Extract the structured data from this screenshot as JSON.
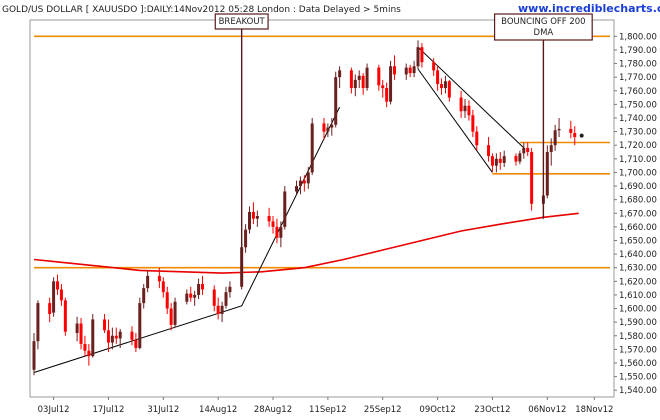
{
  "header": {
    "title": "GOLD/US DOLLAR [ XAUUSDO ]:DAILY:14Nov2012 05:28 London : Data Delayed > 5mins",
    "website": "www.incrediblecharts.com"
  },
  "colors": {
    "up": "#6b2020",
    "down": "#ff0000",
    "ma": "#e80000",
    "support": "#f08a00",
    "trend": "#000000",
    "annotation_border": "#5a1a1a"
  },
  "annotations": [
    {
      "name": "breakout",
      "lines": [
        "BREAKOUT"
      ],
      "x": "2012-08-20",
      "y_top": 1812,
      "y_bottom": 1620
    },
    {
      "name": "bouncing",
      "lines": [
        "BOUNCING OFF 200",
        "DMA"
      ],
      "x": "2012-11-05",
      "y_top": 1812,
      "y_bottom": 1666
    }
  ],
  "chart_data": {
    "type": "candlestick",
    "title": "GOLD/US DOLLAR [ XAUUSDO ]:DAILY:14Nov2012 05:28 London : Data Delayed > 5mins",
    "xlabel": "",
    "ylabel": "",
    "xlim": [
      "2012-06-28",
      "2012-11-22"
    ],
    "ylim": [
      1535,
      1812
    ],
    "y_axis_side": "right",
    "grid": false,
    "x_ticks": [
      {
        "date": "2012-07-03",
        "label": "03Jul12"
      },
      {
        "date": "2012-07-17",
        "label": "17Jul12"
      },
      {
        "date": "2012-07-31",
        "label": "31Jul12"
      },
      {
        "date": "2012-08-14",
        "label": "14Aug12"
      },
      {
        "date": "2012-08-28",
        "label": "28Aug12"
      },
      {
        "date": "2012-09-11",
        "label": "11Sep12"
      },
      {
        "date": "2012-09-25",
        "label": "25Sep12"
      },
      {
        "date": "2012-10-09",
        "label": "09Oct12"
      },
      {
        "date": "2012-10-23",
        "label": "23Oct12"
      },
      {
        "date": "2012-11-06",
        "label": "06Nov12"
      },
      {
        "date": "2012-11-18",
        "label": "18Nov12"
      }
    ],
    "y_ticks": [
      1540,
      1550,
      1560,
      1570,
      1580,
      1590,
      1600,
      1610,
      1620,
      1630,
      1640,
      1650,
      1660,
      1670,
      1680,
      1690,
      1700,
      1710,
      1720,
      1730,
      1740,
      1750,
      1760,
      1770,
      1780,
      1790,
      1800
    ],
    "y_tick_labels": [
      "1,540.00",
      "1,550.00",
      "1,560.00",
      "1,570.00",
      "1,580.00",
      "1,590.00",
      "1,600.00",
      "1,610.00",
      "1,620.00",
      "1,630.00",
      "1,640.00",
      "1,650.00",
      "1,660.00",
      "1,670.00",
      "1,680.00",
      "1,690.00",
      "1,700.00",
      "1,710.00",
      "1,720.00",
      "1,730.00",
      "1,740.00",
      "1,750.00",
      "1,760.00",
      "1,770.00",
      "1,780.00",
      "1,790.00",
      "1,800.00"
    ],
    "candles": [
      {
        "date": "2012-06-28",
        "o": 1555,
        "h": 1582,
        "l": 1551,
        "c": 1576
      },
      {
        "date": "2012-06-29",
        "o": 1576,
        "h": 1606,
        "l": 1570,
        "c": 1604
      },
      {
        "date": "2012-07-02",
        "o": 1604,
        "h": 1608,
        "l": 1590,
        "c": 1596
      },
      {
        "date": "2012-07-03",
        "o": 1597,
        "h": 1623,
        "l": 1594,
        "c": 1620
      },
      {
        "date": "2012-07-04",
        "o": 1620,
        "h": 1625,
        "l": 1610,
        "c": 1614
      },
      {
        "date": "2012-07-05",
        "o": 1614,
        "h": 1618,
        "l": 1602,
        "c": 1606
      },
      {
        "date": "2012-07-06",
        "o": 1606,
        "h": 1608,
        "l": 1580,
        "c": 1583
      },
      {
        "date": "2012-07-09",
        "o": 1582,
        "h": 1594,
        "l": 1576,
        "c": 1589
      },
      {
        "date": "2012-07-10",
        "o": 1589,
        "h": 1593,
        "l": 1570,
        "c": 1574
      },
      {
        "date": "2012-07-11",
        "o": 1574,
        "h": 1580,
        "l": 1565,
        "c": 1569
      },
      {
        "date": "2012-07-12",
        "o": 1569,
        "h": 1574,
        "l": 1558,
        "c": 1565
      },
      {
        "date": "2012-07-13",
        "o": 1565,
        "h": 1596,
        "l": 1564,
        "c": 1592
      },
      {
        "date": "2012-07-16",
        "o": 1592,
        "h": 1596,
        "l": 1582,
        "c": 1584
      },
      {
        "date": "2012-07-17",
        "o": 1584,
        "h": 1592,
        "l": 1568,
        "c": 1575
      },
      {
        "date": "2012-07-18",
        "o": 1575,
        "h": 1586,
        "l": 1570,
        "c": 1580
      },
      {
        "date": "2012-07-19",
        "o": 1580,
        "h": 1586,
        "l": 1574,
        "c": 1578
      },
      {
        "date": "2012-07-20",
        "o": 1578,
        "h": 1585,
        "l": 1571,
        "c": 1583
      },
      {
        "date": "2012-07-23",
        "o": 1583,
        "h": 1587,
        "l": 1573,
        "c": 1577
      },
      {
        "date": "2012-07-24",
        "o": 1577,
        "h": 1582,
        "l": 1568,
        "c": 1571
      },
      {
        "date": "2012-07-25",
        "o": 1571,
        "h": 1608,
        "l": 1570,
        "c": 1604
      },
      {
        "date": "2012-07-26",
        "o": 1604,
        "h": 1618,
        "l": 1600,
        "c": 1615
      },
      {
        "date": "2012-07-27",
        "o": 1615,
        "h": 1628,
        "l": 1612,
        "c": 1624
      },
      {
        "date": "2012-07-30",
        "o": 1624,
        "h": 1630,
        "l": 1615,
        "c": 1620
      },
      {
        "date": "2012-07-31",
        "o": 1620,
        "h": 1623,
        "l": 1608,
        "c": 1612
      },
      {
        "date": "2012-08-01",
        "o": 1612,
        "h": 1616,
        "l": 1596,
        "c": 1600
      },
      {
        "date": "2012-08-02",
        "o": 1600,
        "h": 1604,
        "l": 1584,
        "c": 1588
      },
      {
        "date": "2012-08-03",
        "o": 1588,
        "h": 1608,
        "l": 1586,
        "c": 1605
      },
      {
        "date": "2012-08-06",
        "o": 1605,
        "h": 1614,
        "l": 1603,
        "c": 1611
      },
      {
        "date": "2012-08-07",
        "o": 1611,
        "h": 1616,
        "l": 1605,
        "c": 1608
      },
      {
        "date": "2012-08-08",
        "o": 1608,
        "h": 1613,
        "l": 1602,
        "c": 1610
      },
      {
        "date": "2012-08-09",
        "o": 1610,
        "h": 1622,
        "l": 1607,
        "c": 1618
      },
      {
        "date": "2012-08-10",
        "o": 1618,
        "h": 1624,
        "l": 1610,
        "c": 1614
      },
      {
        "date": "2012-08-13",
        "o": 1614,
        "h": 1617,
        "l": 1598,
        "c": 1602
      },
      {
        "date": "2012-08-14",
        "o": 1602,
        "h": 1608,
        "l": 1592,
        "c": 1596
      },
      {
        "date": "2012-08-15",
        "o": 1596,
        "h": 1605,
        "l": 1590,
        "c": 1602
      },
      {
        "date": "2012-08-16",
        "o": 1602,
        "h": 1616,
        "l": 1600,
        "c": 1612
      },
      {
        "date": "2012-08-17",
        "o": 1612,
        "h": 1620,
        "l": 1608,
        "c": 1616
      },
      {
        "date": "2012-08-20",
        "o": 1616,
        "h": 1648,
        "l": 1614,
        "c": 1645
      },
      {
        "date": "2012-08-21",
        "o": 1645,
        "h": 1662,
        "l": 1641,
        "c": 1658
      },
      {
        "date": "2012-08-22",
        "o": 1658,
        "h": 1675,
        "l": 1655,
        "c": 1671
      },
      {
        "date": "2012-08-23",
        "o": 1671,
        "h": 1678,
        "l": 1662,
        "c": 1666
      },
      {
        "date": "2012-08-24",
        "o": 1666,
        "h": 1672,
        "l": 1660,
        "c": 1668
      },
      {
        "date": "2012-08-27",
        "o": 1668,
        "h": 1674,
        "l": 1660,
        "c": 1664
      },
      {
        "date": "2012-08-28",
        "o": 1664,
        "h": 1668,
        "l": 1655,
        "c": 1660
      },
      {
        "date": "2012-08-29",
        "o": 1660,
        "h": 1666,
        "l": 1648,
        "c": 1652
      },
      {
        "date": "2012-08-30",
        "o": 1652,
        "h": 1664,
        "l": 1645,
        "c": 1660
      },
      {
        "date": "2012-08-31",
        "o": 1660,
        "h": 1690,
        "l": 1658,
        "c": 1686
      },
      {
        "date": "2012-09-03",
        "o": 1686,
        "h": 1694,
        "l": 1684,
        "c": 1690
      },
      {
        "date": "2012-09-04",
        "o": 1690,
        "h": 1697,
        "l": 1684,
        "c": 1694
      },
      {
        "date": "2012-09-05",
        "o": 1694,
        "h": 1698,
        "l": 1686,
        "c": 1692
      },
      {
        "date": "2012-09-06",
        "o": 1692,
        "h": 1704,
        "l": 1688,
        "c": 1700
      },
      {
        "date": "2012-09-07",
        "o": 1700,
        "h": 1740,
        "l": 1698,
        "c": 1736
      },
      {
        "date": "2012-09-10",
        "o": 1736,
        "h": 1740,
        "l": 1724,
        "c": 1730
      },
      {
        "date": "2012-09-11",
        "o": 1730,
        "h": 1736,
        "l": 1726,
        "c": 1733
      },
      {
        "date": "2012-09-12",
        "o": 1733,
        "h": 1740,
        "l": 1727,
        "c": 1735
      },
      {
        "date": "2012-09-13",
        "o": 1735,
        "h": 1774,
        "l": 1733,
        "c": 1770
      },
      {
        "date": "2012-09-14",
        "o": 1770,
        "h": 1778,
        "l": 1762,
        "c": 1775
      },
      {
        "date": "2012-09-17",
        "o": 1775,
        "h": 1777,
        "l": 1758,
        "c": 1762
      },
      {
        "date": "2012-09-18",
        "o": 1762,
        "h": 1772,
        "l": 1756,
        "c": 1768
      },
      {
        "date": "2012-09-19",
        "o": 1768,
        "h": 1775,
        "l": 1762,
        "c": 1771
      },
      {
        "date": "2012-09-20",
        "o": 1771,
        "h": 1773,
        "l": 1757,
        "c": 1762
      },
      {
        "date": "2012-09-21",
        "o": 1762,
        "h": 1780,
        "l": 1760,
        "c": 1777
      },
      {
        "date": "2012-09-24",
        "o": 1777,
        "h": 1779,
        "l": 1760,
        "c": 1764
      },
      {
        "date": "2012-09-25",
        "o": 1764,
        "h": 1768,
        "l": 1755,
        "c": 1762
      },
      {
        "date": "2012-09-26",
        "o": 1762,
        "h": 1766,
        "l": 1748,
        "c": 1752
      },
      {
        "date": "2012-09-27",
        "o": 1752,
        "h": 1782,
        "l": 1750,
        "c": 1778
      },
      {
        "date": "2012-09-28",
        "o": 1778,
        "h": 1786,
        "l": 1768,
        "c": 1772
      },
      {
        "date": "2012-10-01",
        "o": 1772,
        "h": 1780,
        "l": 1768,
        "c": 1777
      },
      {
        "date": "2012-10-02",
        "o": 1777,
        "h": 1779,
        "l": 1770,
        "c": 1773
      },
      {
        "date": "2012-10-03",
        "o": 1773,
        "h": 1782,
        "l": 1770,
        "c": 1778
      },
      {
        "date": "2012-10-04",
        "o": 1778,
        "h": 1797,
        "l": 1776,
        "c": 1792
      },
      {
        "date": "2012-10-05",
        "o": 1792,
        "h": 1795,
        "l": 1777,
        "c": 1781
      },
      {
        "date": "2012-10-08",
        "o": 1781,
        "h": 1784,
        "l": 1771,
        "c": 1775
      },
      {
        "date": "2012-10-09",
        "o": 1775,
        "h": 1778,
        "l": 1760,
        "c": 1765
      },
      {
        "date": "2012-10-10",
        "o": 1765,
        "h": 1769,
        "l": 1757,
        "c": 1762
      },
      {
        "date": "2012-10-11",
        "o": 1762,
        "h": 1771,
        "l": 1758,
        "c": 1767
      },
      {
        "date": "2012-10-12",
        "o": 1767,
        "h": 1768,
        "l": 1752,
        "c": 1755
      },
      {
        "date": "2012-10-15",
        "o": 1755,
        "h": 1760,
        "l": 1740,
        "c": 1745
      },
      {
        "date": "2012-10-16",
        "o": 1745,
        "h": 1754,
        "l": 1740,
        "c": 1749
      },
      {
        "date": "2012-10-17",
        "o": 1749,
        "h": 1753,
        "l": 1738,
        "c": 1742
      },
      {
        "date": "2012-10-18",
        "o": 1742,
        "h": 1746,
        "l": 1726,
        "c": 1730
      },
      {
        "date": "2012-10-19",
        "o": 1730,
        "h": 1734,
        "l": 1716,
        "c": 1720
      },
      {
        "date": "2012-10-22",
        "o": 1720,
        "h": 1726,
        "l": 1708,
        "c": 1712
      },
      {
        "date": "2012-10-23",
        "o": 1712,
        "h": 1714,
        "l": 1700,
        "c": 1705
      },
      {
        "date": "2012-10-24",
        "o": 1705,
        "h": 1714,
        "l": 1700,
        "c": 1710
      },
      {
        "date": "2012-10-25",
        "o": 1710,
        "h": 1715,
        "l": 1702,
        "c": 1707
      },
      {
        "date": "2012-10-26",
        "o": 1707,
        "h": 1716,
        "l": 1704,
        "c": 1712
      },
      {
        "date": "2012-10-29",
        "o": 1712,
        "h": 1714,
        "l": 1705,
        "c": 1708
      },
      {
        "date": "2012-10-30",
        "o": 1708,
        "h": 1716,
        "l": 1706,
        "c": 1714
      },
      {
        "date": "2012-10-31",
        "o": 1714,
        "h": 1722,
        "l": 1710,
        "c": 1718
      },
      {
        "date": "2012-11-01",
        "o": 1718,
        "h": 1722,
        "l": 1712,
        "c": 1715
      },
      {
        "date": "2012-11-02",
        "o": 1715,
        "h": 1718,
        "l": 1672,
        "c": 1677
      },
      {
        "date": "2012-11-05",
        "o": 1677,
        "h": 1686,
        "l": 1670,
        "c": 1683
      },
      {
        "date": "2012-11-06",
        "o": 1683,
        "h": 1720,
        "l": 1681,
        "c": 1715
      },
      {
        "date": "2012-11-07",
        "o": 1715,
        "h": 1725,
        "l": 1705,
        "c": 1720
      },
      {
        "date": "2012-11-08",
        "o": 1720,
        "h": 1735,
        "l": 1716,
        "c": 1731
      },
      {
        "date": "2012-11-09",
        "o": 1731,
        "h": 1740,
        "l": 1726,
        "c": 1732
      },
      {
        "date": "2012-11-12",
        "o": 1732,
        "h": 1738,
        "l": 1725,
        "c": 1729
      },
      {
        "date": "2012-11-13",
        "o": 1729,
        "h": 1734,
        "l": 1720,
        "c": 1726
      }
    ],
    "last_close": {
      "date": "2012-11-14",
      "value": 1727
    },
    "moving_average_200": [
      {
        "date": "2012-06-28",
        "value": 1636
      },
      {
        "date": "2012-07-05",
        "value": 1634
      },
      {
        "date": "2012-07-15",
        "value": 1631
      },
      {
        "date": "2012-07-25",
        "value": 1628
      },
      {
        "date": "2012-08-05",
        "value": 1627
      },
      {
        "date": "2012-08-15",
        "value": 1626
      },
      {
        "date": "2012-08-25",
        "value": 1627
      },
      {
        "date": "2012-09-05",
        "value": 1630
      },
      {
        "date": "2012-09-15",
        "value": 1636
      },
      {
        "date": "2012-09-25",
        "value": 1643
      },
      {
        "date": "2012-10-05",
        "value": 1650
      },
      {
        "date": "2012-10-15",
        "value": 1657
      },
      {
        "date": "2012-10-25",
        "value": 1662
      },
      {
        "date": "2012-11-05",
        "value": 1667
      },
      {
        "date": "2012-11-14",
        "value": 1670
      }
    ],
    "horizontal_lines": [
      {
        "name": "resistance-1800",
        "value": 1800,
        "x_start": "2012-06-28",
        "x_end": "2012-11-22"
      },
      {
        "name": "support-1630",
        "value": 1630,
        "x_start": "2012-06-28",
        "x_end": "2012-11-22"
      },
      {
        "name": "support-1722",
        "value": 1722,
        "x_start": "2012-10-30",
        "x_end": "2012-11-22"
      },
      {
        "name": "support-1699",
        "value": 1699,
        "x_start": "2012-10-23",
        "x_end": "2012-11-22"
      }
    ],
    "trend_lines": [
      {
        "name": "rising-trendline",
        "points": [
          {
            "date": "2012-06-28",
            "value": 1553
          },
          {
            "date": "2012-08-20",
            "value": 1602
          },
          {
            "date": "2012-09-14",
            "value": 1748
          }
        ]
      },
      {
        "name": "channel-upper",
        "points": [
          {
            "date": "2012-10-04",
            "value": 1792
          },
          {
            "date": "2012-10-31",
            "value": 1718
          }
        ]
      },
      {
        "name": "channel-lower",
        "points": [
          {
            "date": "2012-10-04",
            "value": 1776
          },
          {
            "date": "2012-10-23",
            "value": 1700
          }
        ]
      }
    ]
  }
}
